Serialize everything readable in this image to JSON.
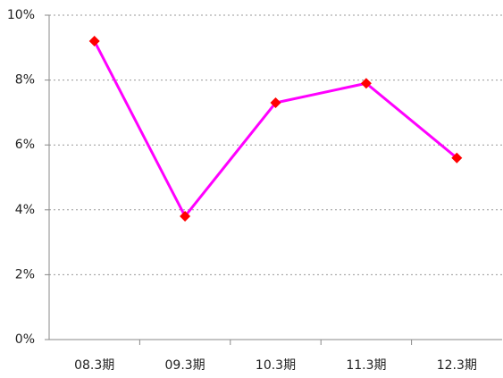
{
  "chart_data": {
    "type": "line",
    "categories": [
      "08.3期",
      "09.3期",
      "10.3期",
      "11.3期",
      "12.3期"
    ],
    "series": [
      {
        "color": "#ff00ff",
        "marker_color": "#ff0000",
        "values": [
          9.2,
          3.8,
          7.3,
          7.9,
          5.6
        ]
      }
    ],
    "ylim": [
      0,
      10
    ],
    "yticks": [
      {
        "value": 0,
        "label": "0%"
      },
      {
        "value": 2,
        "label": "2%"
      },
      {
        "value": 4,
        "label": "4%"
      },
      {
        "value": 6,
        "label": "6%"
      },
      {
        "value": 8,
        "label": "8%"
      },
      {
        "value": 10,
        "label": "10%"
      }
    ],
    "grid": true
  }
}
